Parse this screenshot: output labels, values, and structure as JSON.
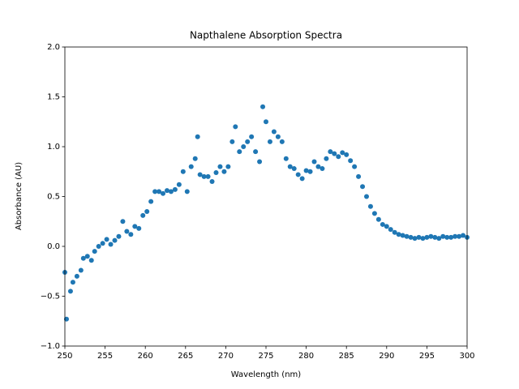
{
  "chart_data": {
    "type": "scatter",
    "title": "Napthalene Absorption Spectra",
    "x_label": "Wavelength (nm)",
    "y_label": "Absorbance (AU)",
    "color": "#1f77b4",
    "xlim": [
      250,
      300
    ],
    "ylim": [
      -1,
      2
    ],
    "xticks": [
      250,
      255,
      260,
      265,
      270,
      275,
      280,
      285,
      290,
      295,
      300
    ],
    "yticks": [
      {
        "value": -1,
        "label": "−1.0"
      },
      {
        "value": -0.5,
        "label": "−0.5"
      },
      {
        "value": 0,
        "label": "0.0"
      },
      {
        "value": 0.5,
        "label": "0.5"
      },
      {
        "value": 1,
        "label": "1.0"
      },
      {
        "value": 1.5,
        "label": "1.5"
      },
      {
        "value": 2,
        "label": "2.0"
      }
    ],
    "x": [
      250,
      250.2,
      250.7,
      251,
      251.5,
      252,
      252.3,
      252.8,
      253.3,
      253.7,
      254.2,
      254.7,
      255.2,
      255.7,
      256.2,
      256.7,
      257.2,
      257.7,
      258.2,
      258.7,
      259.2,
      259.7,
      260.2,
      260.7,
      261.2,
      261.7,
      262.2,
      262.7,
      263.2,
      263.7,
      264.2,
      264.7,
      265.2,
      265.7,
      266.2,
      266.5,
      266.8,
      267.3,
      267.8,
      268.3,
      268.8,
      269.3,
      269.8,
      270.3,
      270.8,
      271.2,
      271.7,
      272.2,
      272.7,
      273.2,
      273.7,
      274.2,
      274.6,
      275.0,
      275.5,
      276.0,
      276.5,
      277.0,
      277.5,
      278.0,
      278.5,
      279.0,
      279.5,
      280.0,
      280.5,
      281.0,
      281.5,
      282.0,
      282.5,
      283.0,
      283.5,
      284.0,
      284.5,
      285.0,
      285.5,
      286.0,
      286.5,
      287.0,
      287.5,
      288.0,
      288.5,
      289.0,
      289.5,
      290.0,
      290.5,
      291.0,
      291.5,
      292.0,
      292.5,
      293.0,
      293.5,
      294.0,
      294.5,
      295.0,
      295.5,
      296.0,
      296.5,
      297.0,
      297.5,
      298.0,
      298.5,
      299.0,
      299.5,
      300
    ],
    "values": [
      -0.26,
      -0.73,
      -0.45,
      -0.36,
      -0.3,
      -0.24,
      -0.12,
      -0.1,
      -0.14,
      -0.05,
      0.0,
      0.03,
      0.07,
      0.02,
      0.06,
      0.1,
      0.25,
      0.15,
      0.12,
      0.2,
      0.18,
      0.31,
      0.35,
      0.45,
      0.55,
      0.55,
      0.53,
      0.56,
      0.55,
      0.57,
      0.62,
      0.75,
      0.55,
      0.8,
      0.88,
      1.1,
      0.72,
      0.7,
      0.7,
      0.65,
      0.74,
      0.8,
      0.75,
      0.8,
      1.05,
      1.2,
      0.95,
      1.0,
      1.05,
      1.1,
      0.95,
      0.85,
      1.4,
      1.25,
      1.05,
      1.15,
      1.1,
      1.05,
      0.88,
      0.8,
      0.78,
      0.72,
      0.68,
      0.76,
      0.75,
      0.85,
      0.8,
      0.78,
      0.88,
      0.95,
      0.93,
      0.9,
      0.94,
      0.92,
      0.86,
      0.8,
      0.7,
      0.6,
      0.5,
      0.4,
      0.33,
      0.27,
      0.22,
      0.2,
      0.17,
      0.14,
      0.12,
      0.11,
      0.1,
      0.09,
      0.08,
      0.09,
      0.08,
      0.09,
      0.1,
      0.09,
      0.08,
      0.1,
      0.09,
      0.09,
      0.1,
      0.1,
      0.11,
      0.09
    ]
  }
}
